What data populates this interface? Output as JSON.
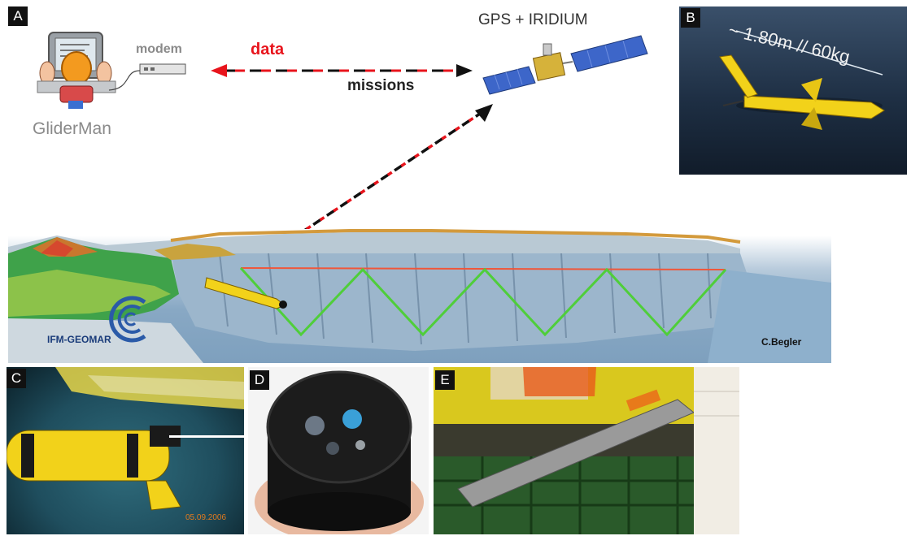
{
  "panels": {
    "a": "A",
    "b": "B",
    "c": "C",
    "d": "D",
    "e": "E"
  },
  "diagram": {
    "gliderman": "GliderMan",
    "modem": "modem",
    "data": "data",
    "missions": "missions",
    "satellite": "GPS + IRIDIUM"
  },
  "photo_b": {
    "dimension_label": "~ 1.80m // 60kg"
  },
  "seafloor": {
    "logo_text": "IFM-GEOMAR",
    "credit": "C.Begler"
  },
  "photo_c": {
    "date_stamp": "05.09.2006"
  },
  "colors": {
    "data_arrow": "#e8141c",
    "missions_arrow": "#111111",
    "glider_yellow": "#f2d21a",
    "path_green": "#4fce3a",
    "path_red": "#f0563a",
    "water_blue": "#8fb4d2"
  }
}
